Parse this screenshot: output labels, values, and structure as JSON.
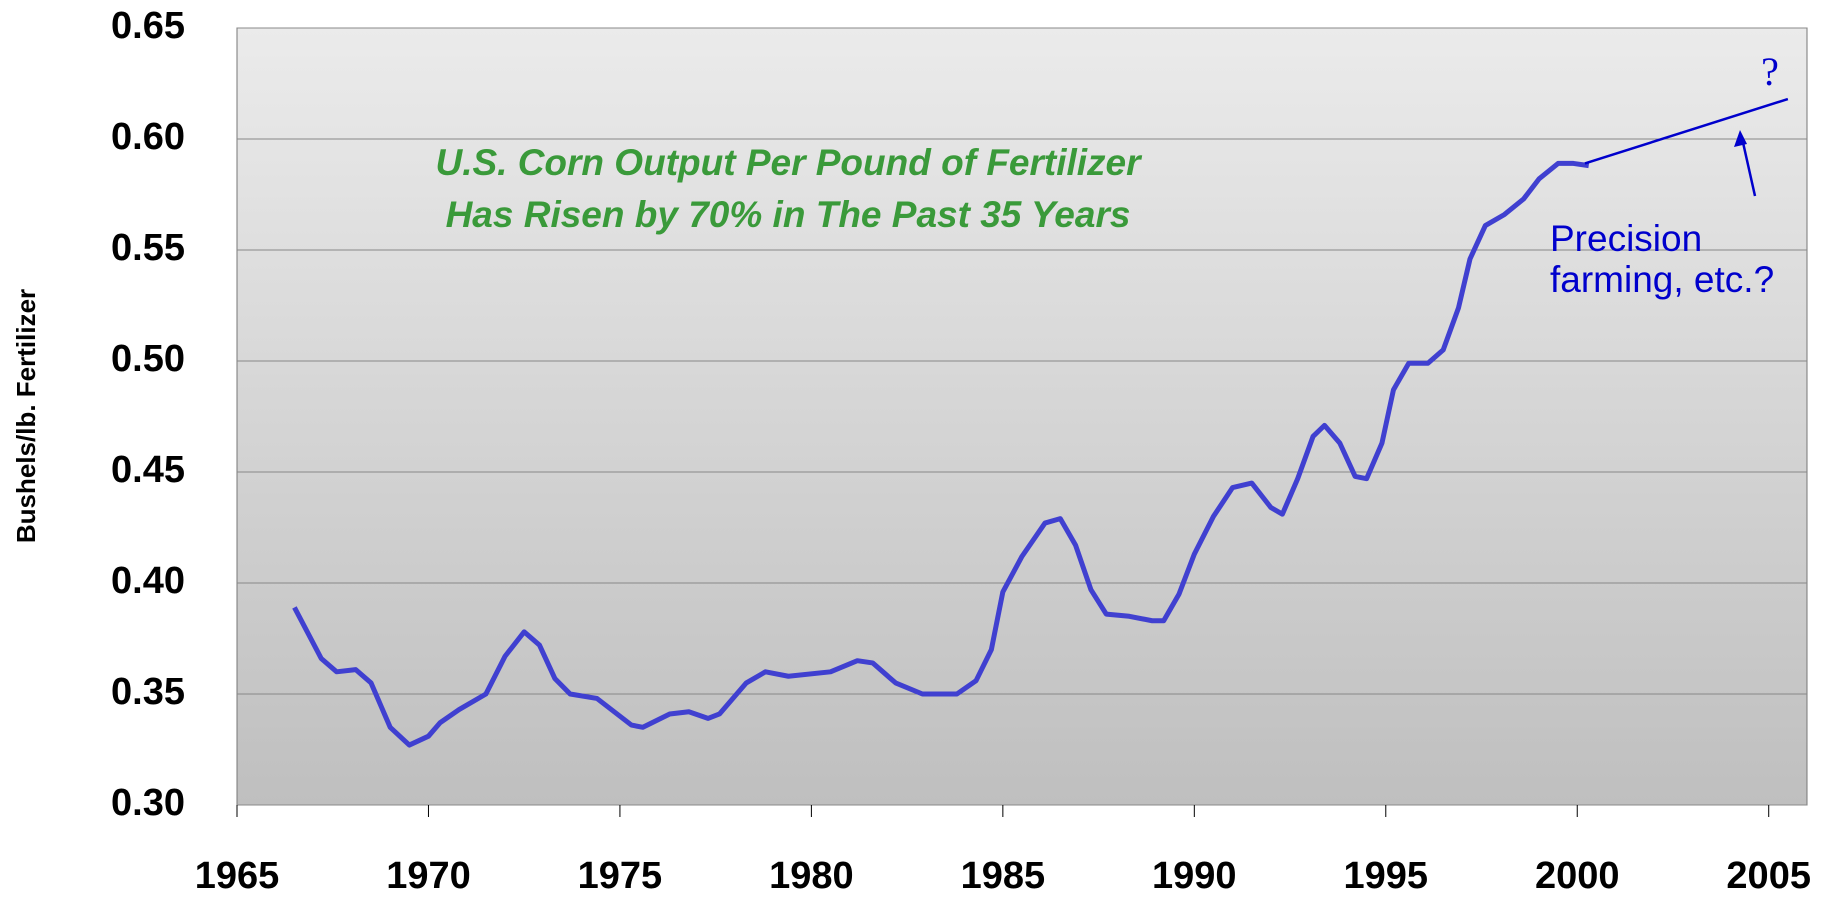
{
  "chart_data": {
    "type": "line",
    "title": [
      "U.S. Corn Output Per Pound of Fertilizer",
      "Has Risen by 70% in The Past 35 Years"
    ],
    "ylabel": "Bushels/lb. Fertilizer",
    "annotation": [
      "Precision",
      "farming, etc.?"
    ],
    "question": "?",
    "x": [
      1966.5,
      1967.2,
      1967.6,
      1968.1,
      1968.5,
      1969.0,
      1969.5,
      1970.0,
      1970.3,
      1970.8,
      1971.5,
      1972.0,
      1972.5,
      1972.9,
      1973.3,
      1973.7,
      1974.4,
      1975.3,
      1975.6,
      1976.3,
      1976.8,
      1977.3,
      1977.6,
      1978.3,
      1978.8,
      1979.4,
      1980.5,
      1981.2,
      1981.6,
      1982.2,
      1982.9,
      1983.8,
      1984.3,
      1984.7,
      1985.0,
      1985.5,
      1986.1,
      1986.5,
      1986.9,
      1987.3,
      1987.7,
      1988.3,
      1988.9,
      1989.2,
      1989.6,
      1990.0,
      1990.5,
      1991.0,
      1991.5,
      1992.0,
      1992.3,
      1992.7,
      1993.1,
      1993.4,
      1993.8,
      1994.2,
      1994.5,
      1994.9,
      1995.2,
      1995.6,
      1996.1,
      1996.5,
      1996.9,
      1997.2,
      1997.6,
      1998.1,
      1998.6,
      1999.0,
      1999.5,
      1999.9,
      2000.3
    ],
    "series": [
      {
        "color": "#4040d0",
        "values": [
          0.389,
          0.366,
          0.36,
          0.361,
          0.355,
          0.335,
          0.327,
          0.331,
          0.337,
          0.343,
          0.35,
          0.367,
          0.378,
          0.372,
          0.357,
          0.35,
          0.348,
          0.336,
          0.335,
          0.341,
          0.342,
          0.339,
          0.341,
          0.355,
          0.36,
          0.358,
          0.36,
          0.365,
          0.364,
          0.355,
          0.35,
          0.35,
          0.356,
          0.37,
          0.396,
          0.412,
          0.427,
          0.429,
          0.417,
          0.397,
          0.386,
          0.385,
          0.383,
          0.383,
          0.395,
          0.413,
          0.43,
          0.443,
          0.445,
          0.434,
          0.431,
          0.447,
          0.466,
          0.471,
          0.463,
          0.448,
          0.447,
          0.463,
          0.487,
          0.499,
          0.499,
          0.505,
          0.524,
          0.546,
          0.561,
          0.566,
          0.573,
          0.582,
          0.589,
          0.589,
          0.588
        ]
      }
    ],
    "projection": {
      "color": "#0000cc",
      "x": [
        2000.2,
        2005.5
      ],
      "values": [
        0.589,
        0.618
      ]
    },
    "annotation_color": "#0000cc",
    "title_color": "#3a9a3a",
    "xlim": [
      1965,
      2006
    ],
    "xticks": [
      1965,
      1970,
      1975,
      1980,
      1985,
      1990,
      1995,
      2000,
      2005
    ],
    "ylim": [
      0.3,
      0.65
    ],
    "yticks": [
      {
        "value": 0.3,
        "label": "0.30"
      },
      0.35,
      {
        "value": 0.4,
        "label": "0.40"
      },
      0.45,
      {
        "value": 0.5,
        "label": "0.50"
      },
      0.55,
      {
        "value": 0.6,
        "label": "0.60"
      },
      0.65
    ],
    "grid": true
  }
}
